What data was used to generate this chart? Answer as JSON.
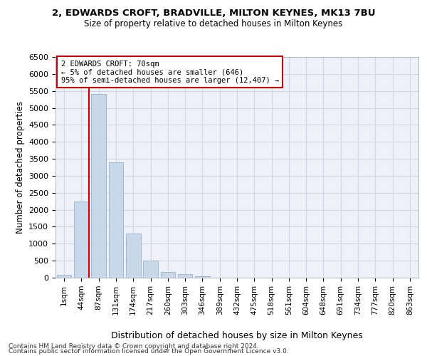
{
  "title1": "2, EDWARDS CROFT, BRADVILLE, MILTON KEYNES, MK13 7BU",
  "title2": "Size of property relative to detached houses in Milton Keynes",
  "xlabel": "Distribution of detached houses by size in Milton Keynes",
  "ylabel": "Number of detached properties",
  "categories": [
    "1sqm",
    "44sqm",
    "87sqm",
    "131sqm",
    "174sqm",
    "217sqm",
    "260sqm",
    "303sqm",
    "346sqm",
    "389sqm",
    "432sqm",
    "475sqm",
    "518sqm",
    "561sqm",
    "604sqm",
    "648sqm",
    "691sqm",
    "734sqm",
    "777sqm",
    "820sqm",
    "863sqm"
  ],
  "values": [
    75,
    2250,
    5400,
    3400,
    1300,
    500,
    175,
    100,
    50,
    10,
    0,
    0,
    0,
    0,
    0,
    0,
    0,
    0,
    0,
    0,
    0
  ],
  "bar_color": "#c8d8e8",
  "bar_edge_color": "#a0b8d0",
  "annotation_text_line1": "2 EDWARDS CROFT: 70sqm",
  "annotation_text_line2": "← 5% of detached houses are smaller (646)",
  "annotation_text_line3": "95% of semi-detached houses are larger (12,407) →",
  "red_line_color": "#cc0000",
  "annotation_box_color": "#ffffff",
  "annotation_box_edge": "#cc0000",
  "grid_color": "#d0d8e8",
  "background_color": "#eef1f7",
  "ylim": [
    0,
    6500
  ],
  "yticks": [
    0,
    500,
    1000,
    1500,
    2000,
    2500,
    3000,
    3500,
    4000,
    4500,
    5000,
    5500,
    6000,
    6500
  ],
  "footer1": "Contains HM Land Registry data © Crown copyright and database right 2024.",
  "footer2": "Contains public sector information licensed under the Open Government Licence v3.0."
}
